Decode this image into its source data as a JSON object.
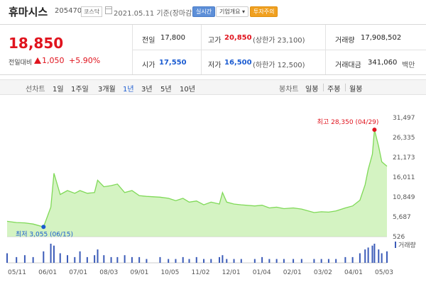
{
  "header": {
    "name": "휴마시스",
    "code": "205470",
    "market": "코스닥",
    "date": "2021.05.11 기준(장마감)",
    "realtime_button": "실시간",
    "company_button": "기업개요 ▾",
    "warning_badge": "투자주의"
  },
  "price": {
    "current": "18,850",
    "change_label": "전일대비",
    "change_value": "1,050",
    "change_pct": "+5.90%"
  },
  "stats": {
    "prev_close_label": "전일",
    "prev_close": "17,800",
    "high_label": "고가",
    "high": "20,850",
    "upper_limit": "(상한가 23,100)",
    "volume_label": "거래량",
    "volume": "17,908,502",
    "open_label": "시가",
    "open": "17,550",
    "low_label": "저가",
    "low": "16,500",
    "lower_limit": "(하한가 12,500)",
    "amount_label": "거래대금",
    "amount": "341,060",
    "amount_unit": "백만"
  },
  "period_bar": {
    "line_chart_label": "선차트",
    "periods": [
      "1일",
      "1주일",
      "3개월",
      "1년",
      "3년",
      "5년",
      "10년"
    ],
    "selected": "1년",
    "candle_chart_label": "봉차트",
    "candle_periods": [
      "일봉",
      "주봉",
      "월봉"
    ]
  },
  "colors": {
    "price_up": "#e0141e",
    "price_down": "#1a5bd1",
    "line": "#7fd957",
    "fill": "#c9f0b3",
    "volume": "#3b5bb8"
  },
  "chart_data": {
    "type": "area",
    "x": [
      "2020-05-11",
      "2020-05-20",
      "2020-05-28",
      "2020-06-05",
      "2020-06-15",
      "2020-06-22",
      "2020-06-25",
      "2020-07-01",
      "2020-07-08",
      "2020-07-15",
      "2020-07-20",
      "2020-07-27",
      "2020-08-03",
      "2020-08-06",
      "2020-08-12",
      "2020-08-19",
      "2020-08-25",
      "2020-09-01",
      "2020-09-08",
      "2020-09-15",
      "2020-09-22",
      "2020-10-05",
      "2020-10-13",
      "2020-10-20",
      "2020-10-27",
      "2020-11-02",
      "2020-11-09",
      "2020-11-16",
      "2020-11-23",
      "2020-12-01",
      "2020-12-04",
      "2020-12-08",
      "2020-12-15",
      "2020-12-22",
      "2021-01-04",
      "2021-01-11",
      "2021-01-18",
      "2021-01-25",
      "2021-02-01",
      "2021-02-10",
      "2021-02-18",
      "2021-03-02",
      "2021-03-09",
      "2021-03-16",
      "2021-03-23",
      "2021-04-01",
      "2021-04-08",
      "2021-04-15",
      "2021-04-20",
      "2021-04-23",
      "2021-04-27",
      "2021-04-29",
      "2021-05-03",
      "2021-05-06",
      "2021-05-11"
    ],
    "y": [
      4500,
      4200,
      4100,
      3800,
      3055,
      8200,
      17000,
      11500,
      12500,
      11800,
      12500,
      11800,
      12000,
      15200,
      13500,
      13800,
      14200,
      12000,
      12500,
      11200,
      11000,
      10800,
      10500,
      9900,
      10500,
      9500,
      9800,
      8800,
      9500,
      9000,
      12000,
      9500,
      9000,
      8800,
      8500,
      8700,
      8000,
      8200,
      7800,
      8000,
      7700,
      6800,
      7000,
      6900,
      7200,
      8000,
      8500,
      10000,
      14000,
      18000,
      22000,
      28350,
      24000,
      20000,
      18850
    ],
    "volume_relative": [
      0.5,
      0.3,
      0.4,
      0.3,
      0.6,
      1.0,
      0.9,
      0.5,
      0.4,
      0.3,
      0.6,
      0.3,
      0.4,
      0.7,
      0.4,
      0.3,
      0.3,
      0.4,
      0.3,
      0.3,
      0.2,
      0.3,
      0.2,
      0.2,
      0.3,
      0.2,
      0.3,
      0.2,
      0.2,
      0.3,
      0.4,
      0.2,
      0.2,
      0.2,
      0.2,
      0.3,
      0.2,
      0.2,
      0.2,
      0.2,
      0.2,
      0.2,
      0.2,
      0.2,
      0.2,
      0.3,
      0.3,
      0.5,
      0.7,
      0.8,
      0.9,
      1.0,
      0.7,
      0.5,
      0.6
    ],
    "y_ticks": [
      31497,
      26335,
      21173,
      16011,
      10849,
      5687,
      526
    ],
    "ylim": [
      526,
      31497
    ],
    "x_tick_labels": [
      "05/11",
      "06/01",
      "07/01",
      "08/03",
      "09/01",
      "10/05",
      "11/02",
      "12/01",
      "01/04",
      "02/01",
      "03/02",
      "04/01",
      "05/03"
    ],
    "max_annotation": "최고 28,350 (04/29)",
    "min_annotation": "최저 3,055 (06/15)",
    "volume_legend": "거래량"
  }
}
